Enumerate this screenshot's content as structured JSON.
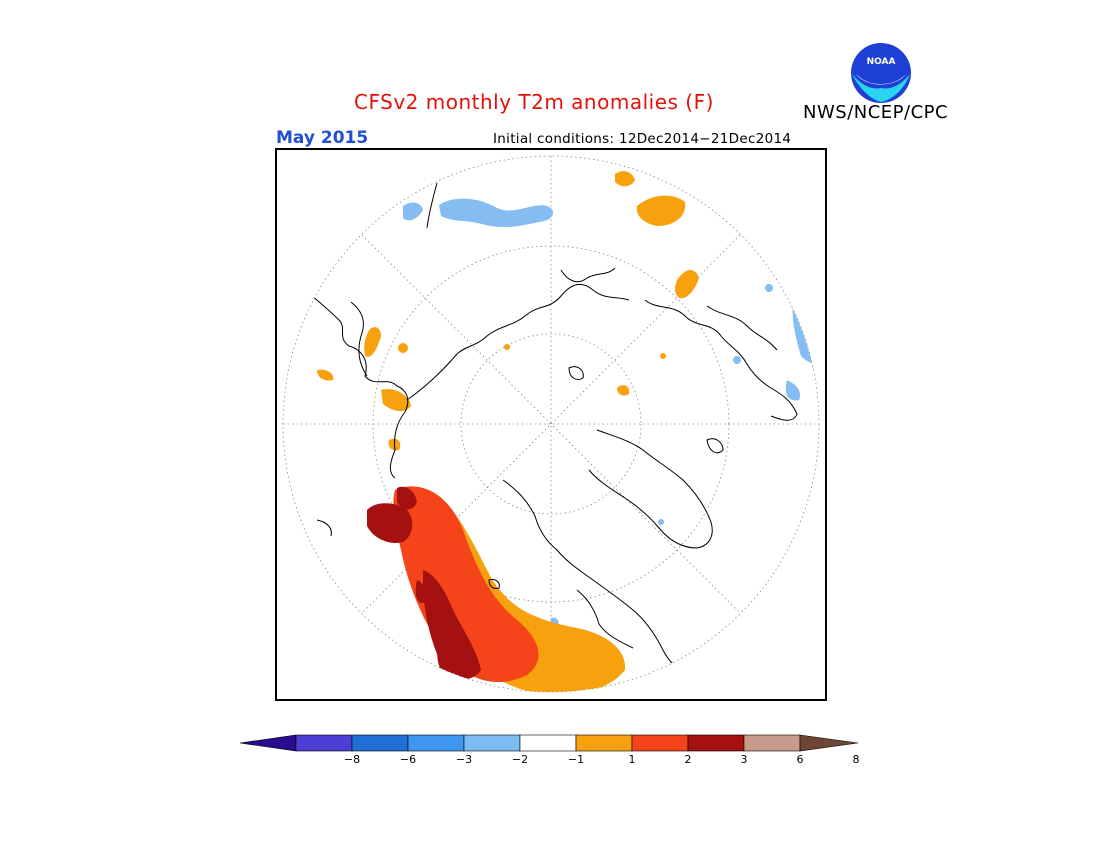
{
  "header": {
    "title": "CFSv2 monthly T2m anomalies (F)",
    "month": "May 2015",
    "initial_conditions": "Initial conditions: 12Dec2014−21Dec2014",
    "agency": "NWS/NCEP/CPC",
    "logo_text": "NOAA"
  },
  "map": {
    "projection": "north-polar-stereographic",
    "grid": "dotted lat/lon graticule"
  },
  "legend": {
    "tick_labels": [
      "−8",
      "−6",
      "−3",
      "−2",
      "−1",
      "1",
      "2",
      "3",
      "6",
      "8"
    ],
    "colors": [
      "#2a0c8f",
      "#4c3fd6",
      "#1f6fd6",
      "#3e96ee",
      "#7cbcf3",
      "#ffffff",
      "#f7a10e",
      "#f5431a",
      "#a51010",
      "#c79c8a",
      "#6e4635"
    ]
  }
}
